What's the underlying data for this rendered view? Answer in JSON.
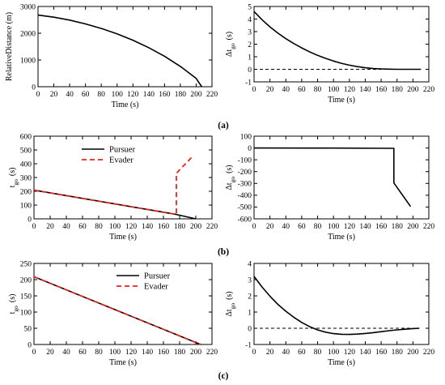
{
  "panel_captions": [
    "(a)",
    "(b)",
    "(c)"
  ],
  "chart_data": [
    {
      "id": "a-left",
      "type": "line",
      "xlabel": "Time (s)",
      "ylabel": "RelativeDistance (m)",
      "xlim": [
        0,
        220
      ],
      "ylim": [
        0,
        3000
      ],
      "xticks": [
        0,
        20,
        40,
        60,
        80,
        100,
        120,
        140,
        160,
        180,
        200,
        220
      ],
      "yticks": [
        0,
        1000,
        2000,
        3000
      ],
      "series": [
        {
          "color": "#000000",
          "dash": "solid",
          "x": [
            0,
            20,
            40,
            60,
            80,
            100,
            120,
            140,
            160,
            180,
            200,
            207
          ],
          "y": [
            2680,
            2600,
            2490,
            2350,
            2180,
            1980,
            1740,
            1460,
            1140,
            760,
            310,
            0
          ]
        }
      ]
    },
    {
      "id": "a-right",
      "type": "line",
      "xlabel": "Time (s)",
      "ylabel_main": "Δt",
      "ylabel_sub": "go",
      "ylabel_unit": "(s)",
      "xlim": [
        0,
        220
      ],
      "ylim": [
        -1,
        5
      ],
      "xticks": [
        0,
        20,
        40,
        60,
        80,
        100,
        120,
        140,
        160,
        180,
        200,
        220
      ],
      "yticks": [
        -1,
        0,
        1,
        2,
        3,
        4,
        5
      ],
      "series": [
        {
          "color": "#000000",
          "dash": "solid",
          "x": [
            0,
            10,
            20,
            30,
            40,
            50,
            60,
            70,
            80,
            90,
            100,
            110,
            120,
            130,
            140,
            150,
            160,
            170,
            180,
            190,
            200,
            210
          ],
          "y": [
            4.6,
            3.95,
            3.38,
            2.88,
            2.44,
            2.05,
            1.7,
            1.39,
            1.11,
            0.87,
            0.66,
            0.48,
            0.33,
            0.21,
            0.12,
            0.06,
            0.03,
            0.01,
            0.0,
            0.0,
            0.0,
            0.0
          ]
        },
        {
          "color": "#000000",
          "dash": "dashed",
          "x": [
            0,
            210
          ],
          "y": [
            0,
            0
          ]
        }
      ]
    },
    {
      "id": "b-left",
      "type": "line",
      "xlabel": "Time (s)",
      "ylabel_main": "t",
      "ylabel_sub": "go",
      "ylabel_unit": "(s)",
      "xlim": [
        0,
        220
      ],
      "ylim": [
        0,
        600
      ],
      "xticks": [
        0,
        20,
        40,
        60,
        80,
        100,
        120,
        140,
        160,
        180,
        200,
        220
      ],
      "yticks": [
        0,
        100,
        200,
        300,
        400,
        500,
        600
      ],
      "legend_position": "top-right",
      "series": [
        {
          "name": "Pursuer",
          "color": "#000000",
          "dash": "solid",
          "x": [
            0,
            50,
            100,
            150,
            176,
            200
          ],
          "y": [
            208,
            158,
            108,
            58,
            32,
            0
          ]
        },
        {
          "name": "Evader",
          "color": "#e8221c",
          "dash": "dashed",
          "x": [
            0,
            50,
            100,
            150,
            176,
            176,
            182,
            190,
            197
          ],
          "y": [
            208,
            158,
            108,
            58,
            32,
            330,
            368,
            415,
            460
          ]
        }
      ]
    },
    {
      "id": "b-right",
      "type": "line",
      "xlabel": "Time (s)",
      "ylabel_main": "Δt",
      "ylabel_sub": "go",
      "ylabel_unit": "(s)",
      "xlim": [
        0,
        220
      ],
      "ylim": [
        -600,
        100
      ],
      "xticks": [
        0,
        20,
        40,
        60,
        80,
        100,
        120,
        140,
        160,
        180,
        200,
        220
      ],
      "yticks": [
        -600,
        -500,
        -400,
        -300,
        -200,
        -100,
        0,
        100
      ],
      "series": [
        {
          "color": "#000000",
          "dash": "solid",
          "x": [
            0,
            100,
            176,
            176,
            197
          ],
          "y": [
            0,
            -1,
            -3,
            -296,
            -495
          ]
        }
      ]
    },
    {
      "id": "c-left",
      "type": "line",
      "xlabel": "Time (s)",
      "ylabel_main": "t",
      "ylabel_sub": "go",
      "ylabel_unit": "(s)",
      "xlim": [
        0,
        220
      ],
      "ylim": [
        0,
        250
      ],
      "xticks": [
        0,
        20,
        40,
        60,
        80,
        100,
        120,
        140,
        160,
        180,
        200,
        220
      ],
      "yticks": [
        0,
        50,
        100,
        150,
        200,
        250
      ],
      "legend_position": "top-right",
      "series": [
        {
          "name": "Pursuer",
          "color": "#000000",
          "dash": "solid",
          "x": [
            0,
            206
          ],
          "y": [
            209,
            0
          ]
        },
        {
          "name": "Evader",
          "color": "#e8221c",
          "dash": "dashed",
          "x": [
            0,
            206
          ],
          "y": [
            209,
            0
          ]
        }
      ]
    },
    {
      "id": "c-right",
      "type": "line",
      "xlabel": "Time (s)",
      "ylabel_main": "Δt",
      "ylabel_sub": "go",
      "ylabel_unit": "(s)",
      "xlim": [
        0,
        220
      ],
      "ylim": [
        -1,
        4
      ],
      "xticks": [
        0,
        20,
        40,
        60,
        80,
        100,
        120,
        140,
        160,
        180,
        200,
        220
      ],
      "yticks": [
        -1,
        0,
        1,
        2,
        3,
        4
      ],
      "series": [
        {
          "color": "#000000",
          "dash": "solid",
          "x": [
            0,
            10,
            20,
            30,
            40,
            50,
            60,
            70,
            80,
            90,
            100,
            110,
            120,
            130,
            140,
            150,
            160,
            170,
            180,
            190,
            200,
            208
          ],
          "y": [
            3.2,
            2.55,
            1.98,
            1.47,
            1.05,
            0.68,
            0.36,
            0.1,
            -0.1,
            -0.24,
            -0.33,
            -0.37,
            -0.38,
            -0.36,
            -0.32,
            -0.27,
            -0.21,
            -0.15,
            -0.1,
            -0.06,
            -0.02,
            0.0
          ]
        },
        {
          "color": "#000000",
          "dash": "dashed",
          "x": [
            0,
            208
          ],
          "y": [
            0,
            0
          ]
        }
      ]
    }
  ]
}
